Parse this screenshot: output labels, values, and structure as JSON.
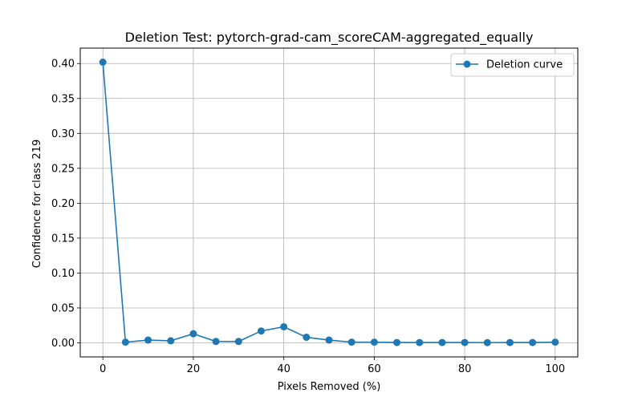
{
  "chart_data": {
    "type": "line",
    "title": "Deletion Test: pytorch-grad-cam_scoreCAM-aggregated_equally",
    "xlabel": "Pixels Removed (%)",
    "ylabel": "Confidence for class 219",
    "xlim": [
      -5,
      105
    ],
    "ylim": [
      -0.0201,
      0.4221
    ],
    "xticks": [
      0,
      20,
      40,
      60,
      80,
      100
    ],
    "yticks": [
      0.0,
      0.05,
      0.1,
      0.15,
      0.2,
      0.25,
      0.3,
      0.35,
      0.4
    ],
    "xtick_labels": [
      "0",
      "20",
      "40",
      "60",
      "80",
      "100"
    ],
    "ytick_labels": [
      "0.00",
      "0.05",
      "0.10",
      "0.15",
      "0.20",
      "0.25",
      "0.30",
      "0.35",
      "0.40"
    ],
    "grid": true,
    "legend_position": "top-right",
    "series": [
      {
        "name": "Deletion curve",
        "color": "#1f77b4",
        "marker": "circle",
        "x": [
          0,
          5,
          10,
          15,
          20,
          25,
          30,
          35,
          40,
          45,
          50,
          55,
          60,
          65,
          70,
          75,
          80,
          85,
          90,
          95,
          100
        ],
        "y": [
          0.402,
          0.001,
          0.004,
          0.003,
          0.013,
          0.002,
          0.002,
          0.017,
          0.023,
          0.008,
          0.004,
          0.001,
          0.001,
          0.0005,
          0.0005,
          0.0005,
          0.0005,
          0.0003,
          0.0005,
          0.0005,
          0.001
        ]
      }
    ]
  }
}
